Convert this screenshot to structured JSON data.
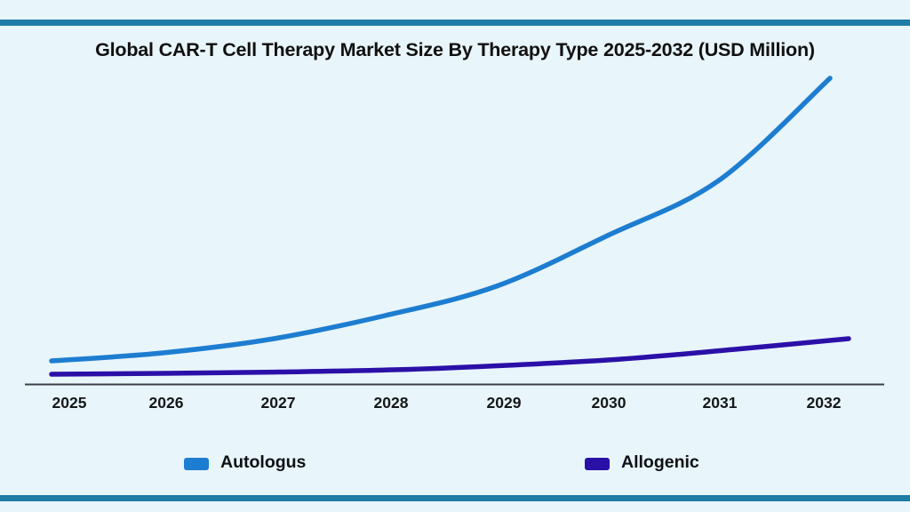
{
  "title": "Global CAR-T Cell Therapy Market Size By Therapy Type 2025-2032 (USD Million)",
  "colors": {
    "background": "#e8f5fb",
    "accent_bar": "#1e7ca6",
    "autologus_line": "#1d7dd0",
    "allogenic_line": "#2b10a8",
    "axis_line": "#3c4147",
    "title_text": "#101010"
  },
  "legend": {
    "items": [
      {
        "label": "Autologus",
        "color": "#1d7dd0"
      },
      {
        "label": "Allogenic",
        "color": "#2b10a8"
      }
    ]
  },
  "chart_data": {
    "type": "line",
    "categories": [
      "2025",
      "2026",
      "2027",
      "2028",
      "2029",
      "2030",
      "2031",
      "2032"
    ],
    "series": [
      {
        "name": "Autologus",
        "color": "#1d7dd0",
        "values": [
          2600,
          3500,
          5100,
          7700,
          11000,
          16700,
          22900,
          34400
        ]
      },
      {
        "name": "Allogenic",
        "color": "#2b10a8",
        "values": [
          1100,
          1200,
          1350,
          1600,
          2100,
          2800,
          3900,
          5100
        ]
      }
    ],
    "title": "Global CAR-T Cell Therapy Market Size By Therapy Type 2025-2032 (USD Million)",
    "xlabel": "",
    "ylabel": "USD Million",
    "ylim": [
      0,
      36000
    ],
    "y_axis_shown": false,
    "grid": false,
    "legend_position": "bottom"
  }
}
